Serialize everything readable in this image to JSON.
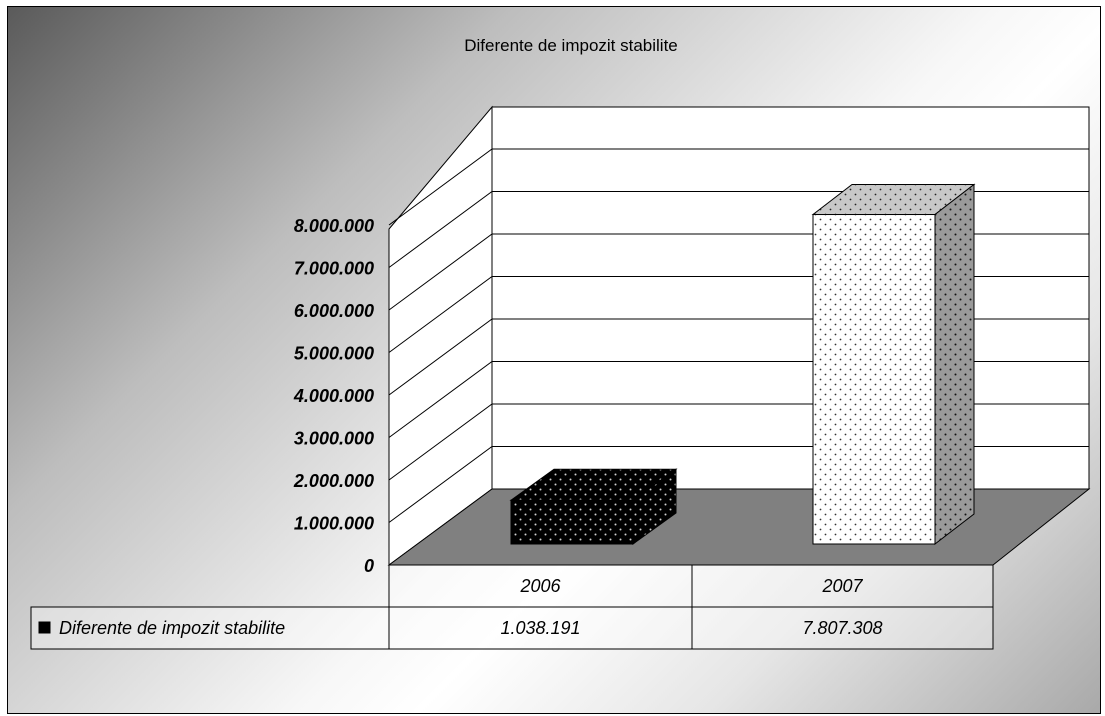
{
  "chart_data": {
    "type": "bar",
    "title": "Diferente de impozit stabilite",
    "categories": [
      "2006",
      "2007"
    ],
    "series": [
      {
        "name": "Diferente de impozit stabilite",
        "values": [
          1038191,
          7807308
        ]
      }
    ],
    "value_labels": [
      "1.038.191",
      "7.807.308"
    ],
    "ylim": [
      0,
      8000000
    ],
    "y_ticks": [
      0,
      1000000,
      2000000,
      3000000,
      4000000,
      5000000,
      6000000,
      7000000,
      8000000
    ],
    "y_tick_labels": [
      "0",
      "1.000.000",
      "2.000.000",
      "3.000.000",
      "4.000.000",
      "5.000.000",
      "6.000.000",
      "7.000.000",
      "8.000.000"
    ],
    "grid": true,
    "legend": "data-table",
    "style": "3d-column"
  }
}
